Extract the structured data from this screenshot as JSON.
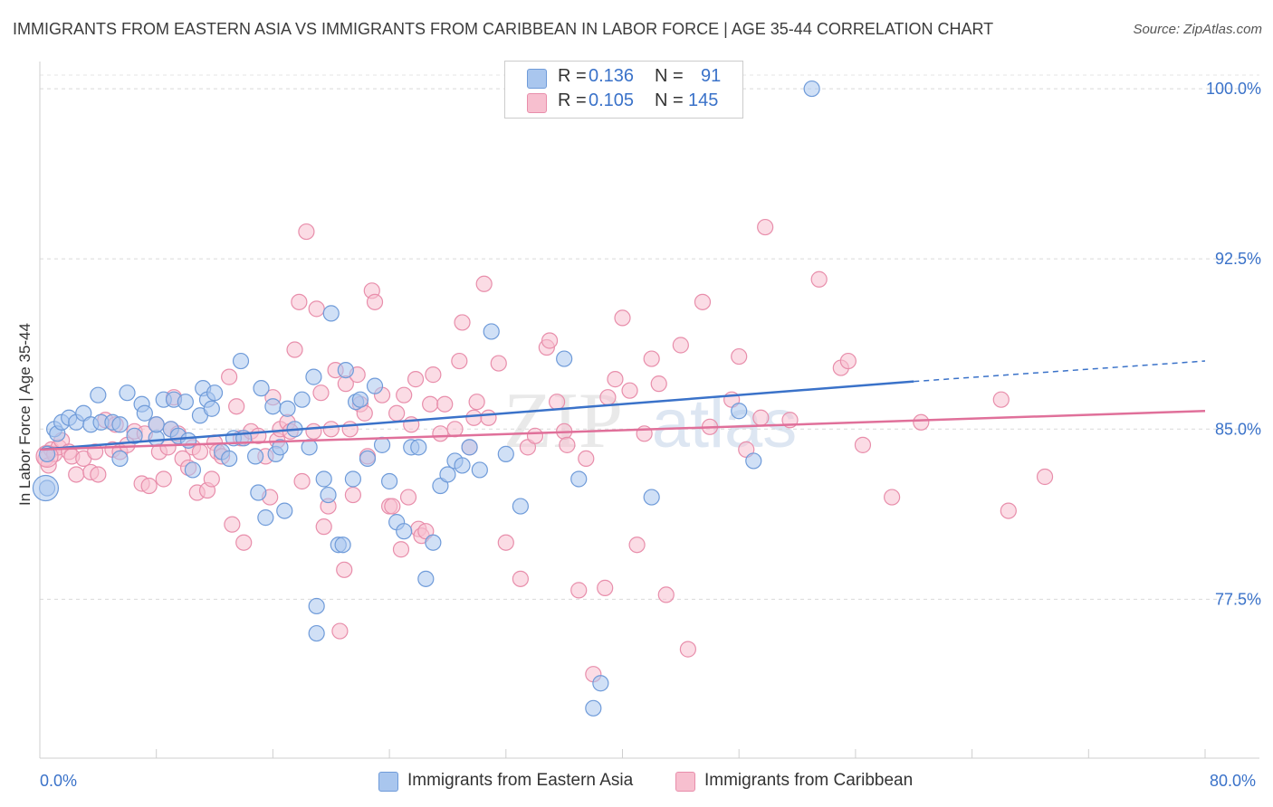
{
  "title": "IMMIGRANTS FROM EASTERN ASIA VS IMMIGRANTS FROM CARIBBEAN IN LABOR FORCE | AGE 35-44 CORRELATION CHART",
  "source": "Source: ZipAtlas.com",
  "legend": {
    "rows": [
      {
        "r_label": "R =",
        "r_value": "0.136",
        "n_label": "N =",
        "n_value": "91"
      },
      {
        "r_label": "R =",
        "r_value": "0.105",
        "n_label": "N =",
        "n_value": "145"
      }
    ]
  },
  "x_axis": {
    "min_label": "0.0%",
    "max_label": "80.0%"
  },
  "y_axis": {
    "title": "In Labor Force | Age 35-44"
  },
  "watermark": {
    "zip": "ZIP",
    "atlas": "atlas"
  },
  "colors": {
    "eastern_asia_fill": "#a9c6ee",
    "eastern_asia_stroke": "#6f9bd9",
    "eastern_asia_line": "#3a72c9",
    "caribbean_fill": "#f7bfcf",
    "caribbean_stroke": "#e88eab",
    "caribbean_line": "#e0709a",
    "tick_label": "#3a72c9"
  },
  "chart_data": {
    "type": "scatter",
    "xlabel": "",
    "ylabel": "In Labor Force | Age 35-44",
    "xlim": [
      0,
      80
    ],
    "ylim": [
      70.5,
      100.8
    ],
    "y_ticks": [
      77.5,
      85.0,
      92.5,
      100.0
    ],
    "y_tick_labels": [
      "77.5%",
      "85.0%",
      "92.5%",
      "100.0%"
    ],
    "x_tick_labels": [
      "0.0%",
      "80.0%"
    ],
    "grid": true,
    "legend_position": "top-center",
    "series": [
      {
        "name": "Immigrants from Eastern Asia",
        "color": "#a9c6ee",
        "trend": {
          "x0": 0,
          "y0": 84.1,
          "x1": 60,
          "y1": 87.1,
          "dashed_to_x": 80,
          "dashed_to_y": 88.0
        },
        "points": [
          [
            0.5,
            83.9
          ],
          [
            0.5,
            82.4
          ],
          [
            1.0,
            85.0
          ],
          [
            1.2,
            84.8
          ],
          [
            1.5,
            85.3
          ],
          [
            2.0,
            85.5
          ],
          [
            2.5,
            85.3
          ],
          [
            3.0,
            85.7
          ],
          [
            3.5,
            85.2
          ],
          [
            4.0,
            86.5
          ],
          [
            4.2,
            85.3
          ],
          [
            5.0,
            85.3
          ],
          [
            5.5,
            85.2
          ],
          [
            5.5,
            83.7
          ],
          [
            6.0,
            86.6
          ],
          [
            6.5,
            84.7
          ],
          [
            7.0,
            86.1
          ],
          [
            7.2,
            85.7
          ],
          [
            8.0,
            84.6
          ],
          [
            8.0,
            85.2
          ],
          [
            8.5,
            86.3
          ],
          [
            9.0,
            85.0
          ],
          [
            9.2,
            86.3
          ],
          [
            9.5,
            84.7
          ],
          [
            10.0,
            86.2
          ],
          [
            10.2,
            84.5
          ],
          [
            10.5,
            83.2
          ],
          [
            11.0,
            85.6
          ],
          [
            11.2,
            86.8
          ],
          [
            11.5,
            86.3
          ],
          [
            11.8,
            85.9
          ],
          [
            12.0,
            86.6
          ],
          [
            12.5,
            84.0
          ],
          [
            13.0,
            83.7
          ],
          [
            13.3,
            84.6
          ],
          [
            13.8,
            88.0
          ],
          [
            14.0,
            84.6
          ],
          [
            14.8,
            83.8
          ],
          [
            15.0,
            82.2
          ],
          [
            15.2,
            86.8
          ],
          [
            15.5,
            81.1
          ],
          [
            16.0,
            86.0
          ],
          [
            16.2,
            83.9
          ],
          [
            16.5,
            84.2
          ],
          [
            16.8,
            81.4
          ],
          [
            17.0,
            85.9
          ],
          [
            17.5,
            85.0
          ],
          [
            18.0,
            86.3
          ],
          [
            18.5,
            84.2
          ],
          [
            18.8,
            87.3
          ],
          [
            19.0,
            77.2
          ],
          [
            19.5,
            82.8
          ],
          [
            19.8,
            82.1
          ],
          [
            20.0,
            90.1
          ],
          [
            20.5,
            79.9
          ],
          [
            20.8,
            79.9
          ],
          [
            21.0,
            87.6
          ],
          [
            21.5,
            82.8
          ],
          [
            21.7,
            86.2
          ],
          [
            22.0,
            86.3
          ],
          [
            22.5,
            83.7
          ],
          [
            23.0,
            86.9
          ],
          [
            23.5,
            84.3
          ],
          [
            24.0,
            82.7
          ],
          [
            24.5,
            80.9
          ],
          [
            25.0,
            80.5
          ],
          [
            25.5,
            84.2
          ],
          [
            26.0,
            84.2
          ],
          [
            26.5,
            78.4
          ],
          [
            27.0,
            80.0
          ],
          [
            27.5,
            82.5
          ],
          [
            28.0,
            83.0
          ],
          [
            28.5,
            83.6
          ],
          [
            29.0,
            83.4
          ],
          [
            29.5,
            84.2
          ],
          [
            30.2,
            83.2
          ],
          [
            31.0,
            89.3
          ],
          [
            32.0,
            83.9
          ],
          [
            33.0,
            81.6
          ],
          [
            36.0,
            88.1
          ],
          [
            37.0,
            82.8
          ],
          [
            38.0,
            72.7
          ],
          [
            38.5,
            73.8
          ],
          [
            42.0,
            82.0
          ],
          [
            48.0,
            85.8
          ],
          [
            49.0,
            83.6
          ],
          [
            53.0,
            100.0
          ],
          [
            19.0,
            76.0
          ]
        ]
      },
      {
        "name": "Immigrants from Caribbean",
        "color": "#f7bfcf",
        "trend": {
          "x0": 0,
          "y0": 84.1,
          "x1": 80,
          "y1": 85.8
        },
        "points": [
          [
            0.4,
            83.7
          ],
          [
            0.6,
            83.4
          ],
          [
            0.8,
            84.1
          ],
          [
            1.0,
            83.9
          ],
          [
            1.3,
            84.2
          ],
          [
            1.5,
            84.5
          ],
          [
            2.0,
            84.0
          ],
          [
            2.2,
            83.8
          ],
          [
            2.5,
            83.0
          ],
          [
            3.0,
            83.7
          ],
          [
            3.5,
            83.1
          ],
          [
            3.8,
            84.0
          ],
          [
            4.0,
            83.0
          ],
          [
            4.5,
            85.4
          ],
          [
            5.0,
            84.1
          ],
          [
            5.2,
            85.2
          ],
          [
            5.5,
            84.0
          ],
          [
            6.0,
            84.3
          ],
          [
            6.5,
            84.9
          ],
          [
            7.0,
            82.6
          ],
          [
            7.2,
            84.8
          ],
          [
            7.5,
            82.5
          ],
          [
            8.0,
            85.2
          ],
          [
            8.2,
            84.0
          ],
          [
            8.5,
            82.8
          ],
          [
            8.8,
            84.2
          ],
          [
            9.0,
            85.0
          ],
          [
            9.2,
            86.4
          ],
          [
            9.5,
            84.8
          ],
          [
            9.8,
            83.7
          ],
          [
            10.2,
            83.3
          ],
          [
            10.5,
            84.2
          ],
          [
            10.8,
            82.2
          ],
          [
            11.0,
            84.0
          ],
          [
            11.5,
            82.3
          ],
          [
            11.8,
            82.8
          ],
          [
            12.0,
            84.4
          ],
          [
            12.2,
            84.0
          ],
          [
            12.5,
            83.8
          ],
          [
            13.0,
            87.3
          ],
          [
            13.2,
            80.8
          ],
          [
            13.5,
            86.0
          ],
          [
            13.8,
            84.6
          ],
          [
            14.0,
            80.0
          ],
          [
            14.5,
            84.9
          ],
          [
            15.0,
            84.7
          ],
          [
            15.5,
            83.8
          ],
          [
            15.8,
            82.0
          ],
          [
            16.0,
            86.4
          ],
          [
            16.3,
            84.5
          ],
          [
            16.5,
            85.0
          ],
          [
            17.0,
            85.3
          ],
          [
            17.2,
            84.9
          ],
          [
            17.5,
            88.5
          ],
          [
            17.8,
            90.6
          ],
          [
            18.0,
            82.7
          ],
          [
            18.3,
            93.7
          ],
          [
            18.8,
            84.9
          ],
          [
            19.0,
            90.3
          ],
          [
            19.3,
            86.6
          ],
          [
            19.5,
            80.7
          ],
          [
            19.8,
            81.6
          ],
          [
            20.0,
            85.0
          ],
          [
            20.3,
            87.6
          ],
          [
            20.6,
            76.1
          ],
          [
            20.9,
            78.8
          ],
          [
            21.0,
            87.0
          ],
          [
            21.3,
            85.0
          ],
          [
            21.5,
            82.1
          ],
          [
            21.8,
            87.4
          ],
          [
            22.0,
            86.1
          ],
          [
            22.3,
            85.7
          ],
          [
            22.5,
            83.8
          ],
          [
            22.8,
            91.1
          ],
          [
            23.0,
            90.6
          ],
          [
            23.5,
            86.5
          ],
          [
            24.0,
            81.6
          ],
          [
            24.2,
            81.6
          ],
          [
            24.5,
            85.7
          ],
          [
            24.8,
            79.7
          ],
          [
            25.0,
            86.5
          ],
          [
            25.3,
            82.0
          ],
          [
            25.5,
            85.2
          ],
          [
            25.8,
            87.2
          ],
          [
            26.0,
            80.6
          ],
          [
            26.2,
            80.3
          ],
          [
            26.5,
            80.5
          ],
          [
            26.8,
            86.1
          ],
          [
            27.0,
            87.4
          ],
          [
            27.5,
            84.8
          ],
          [
            27.8,
            86.1
          ],
          [
            28.5,
            85.0
          ],
          [
            28.8,
            88.0
          ],
          [
            29.0,
            89.7
          ],
          [
            29.5,
            84.2
          ],
          [
            29.8,
            85.5
          ],
          [
            30.0,
            86.2
          ],
          [
            30.5,
            91.4
          ],
          [
            30.8,
            85.5
          ],
          [
            31.5,
            87.9
          ],
          [
            32.0,
            80.0
          ],
          [
            33.0,
            78.4
          ],
          [
            33.5,
            84.2
          ],
          [
            34.0,
            84.7
          ],
          [
            34.8,
            88.6
          ],
          [
            35.0,
            88.9
          ],
          [
            35.5,
            86.2
          ],
          [
            36.0,
            84.9
          ],
          [
            36.2,
            84.3
          ],
          [
            37.0,
            77.9
          ],
          [
            37.5,
            83.7
          ],
          [
            38.0,
            74.2
          ],
          [
            38.8,
            78.0
          ],
          [
            39.0,
            86.4
          ],
          [
            39.5,
            87.2
          ],
          [
            40.0,
            89.9
          ],
          [
            40.5,
            86.7
          ],
          [
            41.0,
            79.9
          ],
          [
            41.5,
            84.8
          ],
          [
            42.0,
            88.1
          ],
          [
            42.5,
            87.0
          ],
          [
            43.0,
            77.7
          ],
          [
            44.0,
            88.7
          ],
          [
            44.5,
            75.3
          ],
          [
            45.5,
            90.6
          ],
          [
            46.0,
            85.1
          ],
          [
            47.5,
            86.3
          ],
          [
            48.0,
            88.2
          ],
          [
            48.5,
            84.1
          ],
          [
            49.5,
            85.5
          ],
          [
            49.8,
            93.9
          ],
          [
            51.5,
            85.4
          ],
          [
            53.5,
            91.6
          ],
          [
            55.0,
            87.7
          ],
          [
            55.5,
            88.0
          ],
          [
            56.5,
            84.3
          ],
          [
            58.5,
            82.0
          ],
          [
            60.5,
            85.3
          ],
          [
            66.0,
            86.3
          ],
          [
            66.5,
            81.4
          ],
          [
            69.0,
            82.9
          ]
        ]
      }
    ]
  }
}
